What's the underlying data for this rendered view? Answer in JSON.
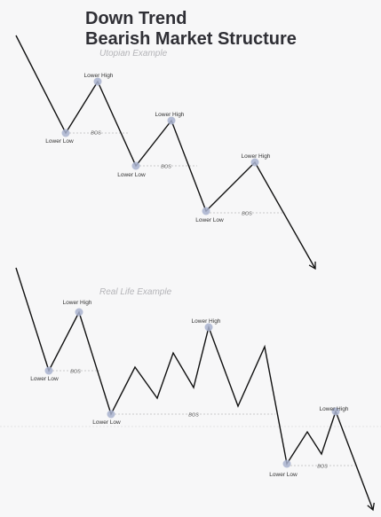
{
  "header": {
    "title": [
      "Down Trend",
      "Bearish Market Structure"
    ]
  },
  "examples": [
    {
      "subtitle": "Utopian Example",
      "labels": [
        "Lower Low",
        "Lower High",
        "Lower Low",
        "Lower High",
        "Lower Low",
        "Lower High"
      ],
      "bos": [
        "BOS",
        "BOS",
        "BOS"
      ]
    },
    {
      "subtitle": "Real Life Example",
      "labels": [
        "Lower Low",
        "Lower High",
        "Lower Low",
        "Lower High",
        "Lower Low",
        "Lower High"
      ],
      "bos": [
        "BOS",
        "BOS",
        "BOS"
      ]
    }
  ]
}
